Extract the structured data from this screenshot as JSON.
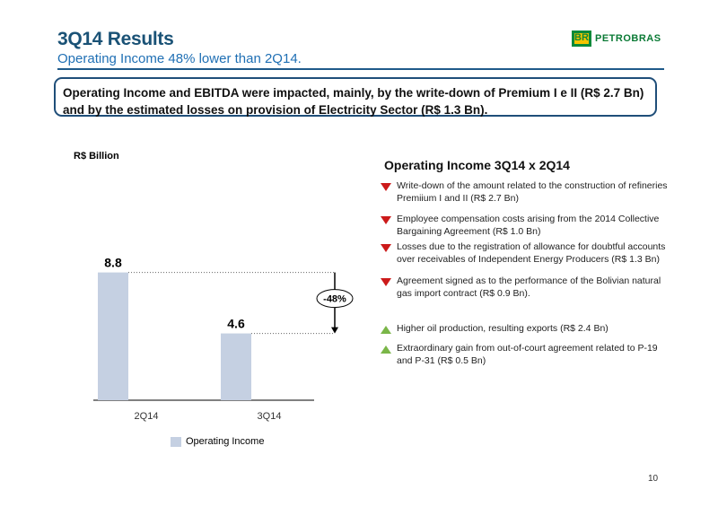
{
  "header": {
    "title": "3Q14 Results",
    "subtitle": "Operating Income 48% lower than 2Q14.",
    "logo_mark_text": "BR",
    "logo_name": "PETROBRAS"
  },
  "callout": {
    "text": "Operating Income and EBITDA were impacted, mainly, by the write-down of Premium I e II (R$ 2.7 Bn) and by the estimated losses on provision of Electricity Sector (R$ 1.3 Bn)."
  },
  "chart_data": {
    "type": "bar",
    "unit_label": "R$ Billion",
    "categories": [
      "2Q14",
      "3Q14"
    ],
    "series": [
      {
        "name": "Operating Income",
        "values": [
          8.8,
          4.6
        ],
        "color": "#c5d0e2"
      }
    ],
    "value_labels": [
      "8.8",
      "4.6"
    ],
    "change_label": "-48%",
    "ylim": [
      0,
      11
    ],
    "grid": false,
    "legend_position": "bottom"
  },
  "panel": {
    "title": "Operating Income 3Q14 x 2Q14",
    "negative_items": [
      {
        "icon": "down-triangle-icon",
        "text": "Write-down  of the amount related to the construction of refineries Premiium I and II (R$ 2.7 Bn)"
      },
      {
        "icon": "down-triangle-icon",
        "text": "Employee compensation costs arising from the 2014 Collective Bargaining Agreement (R$ 1.0 Bn)"
      },
      {
        "icon": "down-triangle-icon",
        "text": "Losses due to the registration of allowance for doubtful accounts over receivables of Independent Energy Producers (R$ 1.3 Bn)"
      },
      {
        "icon": "down-triangle-icon",
        "text": "Agreement signed as to the performance of the Bolivian natural gas import contract (R$ 0.9 Bn)."
      }
    ],
    "positive_items": [
      {
        "icon": "up-triangle-icon",
        "text": "Higher oil production, resulting exports (R$ 2.4 Bn)"
      },
      {
        "icon": "up-triangle-icon",
        "text": "Extraordinary gain from out-of-court agreement related to P-19 and P-31 (R$ 0.5 Bn)"
      }
    ]
  },
  "colors": {
    "negative": "#cc1a1a",
    "positive": "#7ab648",
    "title": "#1a5276",
    "bar": "#c5d0e2"
  },
  "page_number": "10"
}
